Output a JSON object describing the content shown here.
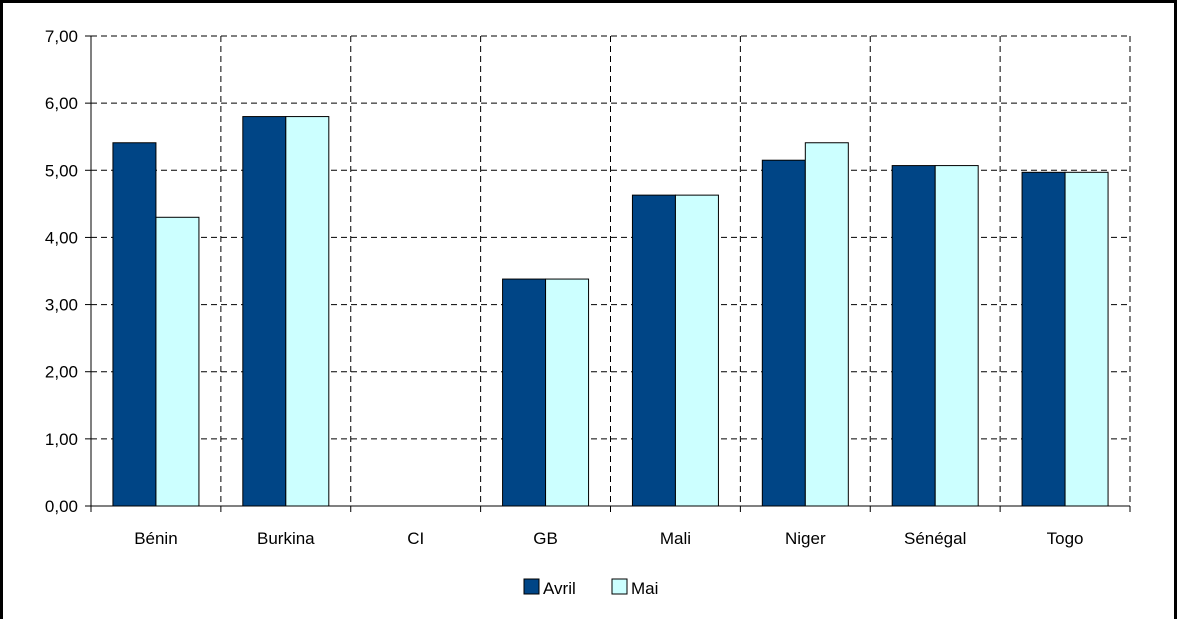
{
  "chart_data": {
    "type": "bar",
    "title": "",
    "xlabel": "",
    "ylabel": "",
    "ylim": [
      0,
      7
    ],
    "y_ticks": [
      "0,00",
      "1,00",
      "2,00",
      "3,00",
      "4,00",
      "5,00",
      "6,00",
      "7,00"
    ],
    "categories": [
      "Bénin",
      "Burkina",
      "CI",
      "GB",
      "Mali",
      "Niger",
      "Sénégal",
      "Togo"
    ],
    "series": [
      {
        "name": "Avril",
        "color": "#004586",
        "values": [
          5.41,
          5.8,
          null,
          3.38,
          4.63,
          5.15,
          5.07,
          4.97
        ]
      },
      {
        "name": "Mai",
        "color": "#ccffff",
        "values": [
          4.3,
          5.8,
          null,
          3.38,
          4.63,
          5.41,
          5.07,
          4.97
        ]
      }
    ],
    "grid": true,
    "legend_position": "bottom-center"
  }
}
